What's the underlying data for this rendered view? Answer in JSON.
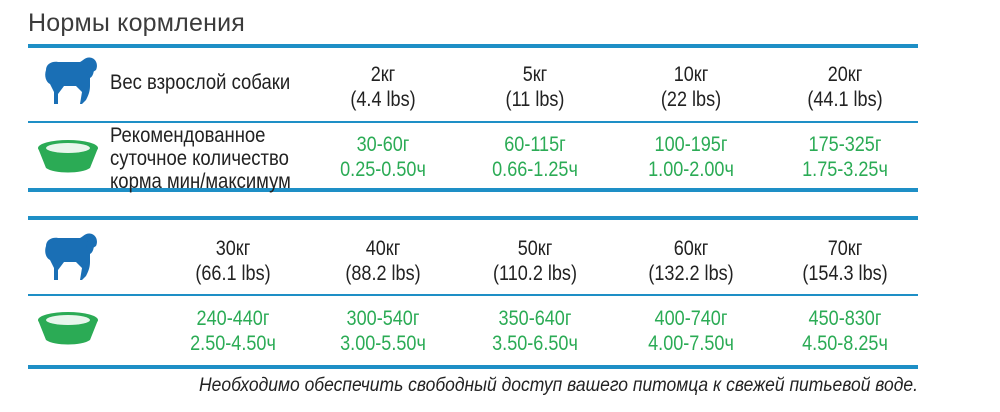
{
  "title": "Нормы кормления",
  "colors": {
    "accent": "#1e8fc6",
    "dog": "#1a6fb5",
    "bowl": "#2bab55",
    "food_text": "#2bab55"
  },
  "table1": {
    "weight_label": "Вес взрослой собаки",
    "food_label_lines": [
      "Рекомендованное",
      "суточное количество",
      "корма мин/максимум"
    ],
    "columns": [
      {
        "weight": "2кг",
        "lbs": "(4.4 lbs)",
        "grams": "30-60г",
        "cups": "0.25-0.50ч"
      },
      {
        "weight": "5кг",
        "lbs": "(11 lbs)",
        "grams": "60-115г",
        "cups": "0.66-1.25ч"
      },
      {
        "weight": "10кг",
        "lbs": "(22 lbs)",
        "grams": "100-195г",
        "cups": "1.00-2.00ч"
      },
      {
        "weight": "20кг",
        "lbs": "(44.1 lbs)",
        "grams": "175-325г",
        "cups": "1.75-3.25ч"
      }
    ]
  },
  "table2": {
    "columns": [
      {
        "weight": "30кг",
        "lbs": "(66.1 lbs)",
        "grams": "240-440г",
        "cups": "2.50-4.50ч"
      },
      {
        "weight": "40кг",
        "lbs": "(88.2 lbs)",
        "grams": "300-540г",
        "cups": "3.00-5.50ч"
      },
      {
        "weight": "50кг",
        "lbs": "(110.2 lbs)",
        "grams": "350-640г",
        "cups": "3.50-6.50ч"
      },
      {
        "weight": "60кг",
        "lbs": "(132.2 lbs)",
        "grams": "400-740г",
        "cups": "4.00-7.50ч"
      },
      {
        "weight": "70кг",
        "lbs": "(154.3 lbs)",
        "grams": "450-830г",
        "cups": "4.50-8.25ч"
      }
    ]
  },
  "footnote": "Необходимо обеспечить свободный доступ  вашего питомца к свежей питьевой воде.",
  "icons": {
    "dog": "dog-icon",
    "bowl": "food-bowl-icon"
  }
}
